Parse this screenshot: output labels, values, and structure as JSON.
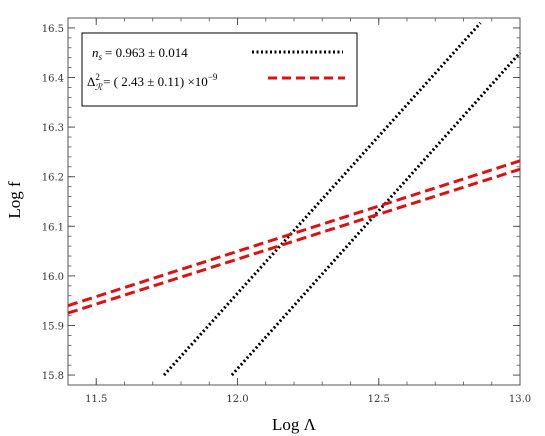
{
  "chart_data": {
    "type": "line",
    "xlabel": "Log  Λ",
    "ylabel": "Log f",
    "xlim": [
      11.4,
      13.0
    ],
    "ylim": [
      15.78,
      16.52
    ],
    "xticks": [
      "11.5",
      "12.0",
      "12.5",
      "13.0"
    ],
    "yticks": [
      "15.8",
      "15.9",
      "16.0",
      "16.1",
      "16.2",
      "16.3",
      "16.4",
      "16.5"
    ],
    "grid": false,
    "legend_position": "top-left",
    "legend": {
      "ns": {
        "symbol": "n",
        "subscript": "s",
        "text": "=  0.963 ± 0.014"
      },
      "delta": {
        "symbol": "Δ",
        "superscript": "2",
        "subscript": "ℛ",
        "text": "= ( 2.43 ± 0.11) ×10",
        "exponent": "−9"
      }
    },
    "series": [
      {
        "group": "ns",
        "color": "#000000",
        "style": "dotted",
        "x": [
          11.74,
          12.86
        ],
        "y": [
          15.8,
          16.51
        ]
      },
      {
        "group": "ns",
        "color": "#000000",
        "style": "dotted",
        "x": [
          11.98,
          13.0
        ],
        "y": [
          15.8,
          16.45
        ]
      },
      {
        "group": "delta",
        "color": "#dd1111",
        "style": "dashed",
        "x": [
          11.4,
          13.0
        ],
        "y": [
          15.94,
          16.232
        ]
      },
      {
        "group": "delta",
        "color": "#dd1111",
        "style": "dashed",
        "x": [
          11.4,
          13.0
        ],
        "y": [
          15.925,
          16.215
        ]
      }
    ]
  }
}
